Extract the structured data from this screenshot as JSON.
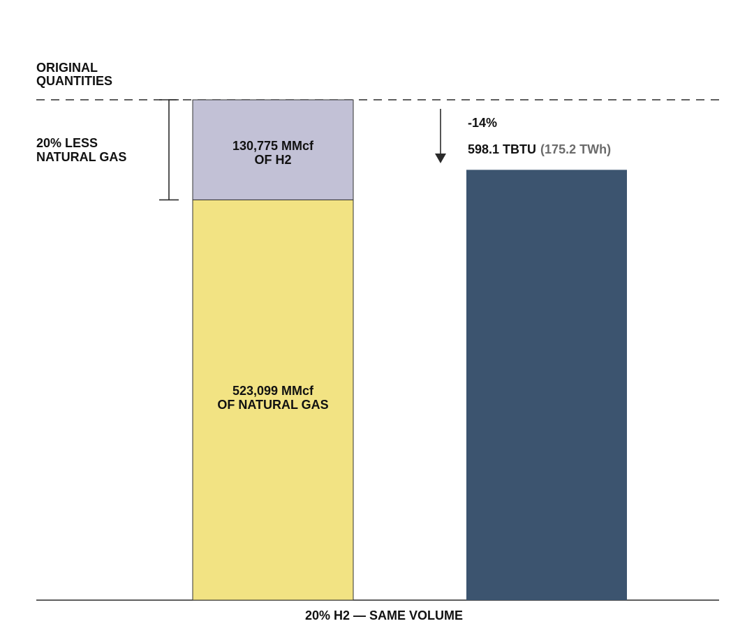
{
  "chart_data": {
    "type": "bar",
    "categories": [
      "",
      ""
    ],
    "series": [
      {
        "values": [
          523099,
          null
        ]
      },
      {
        "values": [
          130775,
          null
        ]
      },
      {
        "values": [
          null,
          598.1
        ]
      }
    ],
    "reference_label": [
      "ORIGINAL",
      "QUANTITIES"
    ],
    "bracket_label": [
      "20% LESS",
      "NATURAL GAS"
    ],
    "segment_labels": {
      "h2": [
        "130,775 MMcf",
        "OF H2"
      ],
      "natural_gas": [
        "523,099 MMcf",
        "OF NATURAL GAS"
      ]
    },
    "change_label": "-14%",
    "energy_label": "598.1 TBTU",
    "energy_alt_label": "(175.2 TWh)",
    "xlabel": "20% H2 — SAME VOLUME",
    "colors": {
      "natural_gas": "#F2E383",
      "h2": "#C2C1D6",
      "energy": "#3C546F",
      "text": "#111111",
      "muted_text": "#6B6B6B",
      "lines": "#2A2A2A"
    },
    "grid": false,
    "legend": "none"
  }
}
